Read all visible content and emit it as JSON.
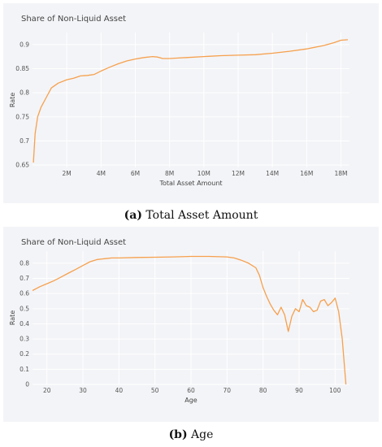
{
  "captions": [
    {
      "letter": "(a)",
      "text": " Total Asset Amount"
    },
    {
      "letter": "(b)",
      "text": " Age"
    }
  ],
  "chart_data": [
    {
      "type": "line",
      "title": "Share of Non-Liquid Asset",
      "xlabel": "Total Asset Amount",
      "ylabel": "Rate",
      "xlim": [
        0,
        18500000
      ],
      "ylim": [
        0.645,
        0.925
      ],
      "x_ticks": [
        2000000,
        4000000,
        6000000,
        8000000,
        10000000,
        12000000,
        14000000,
        16000000,
        18000000
      ],
      "x_tick_labels": [
        "2M",
        "4M",
        "6M",
        "8M",
        "10M",
        "12M",
        "14M",
        "16M",
        "18M"
      ],
      "y_ticks": [
        0.65,
        0.7,
        0.75,
        0.8,
        0.85,
        0.9
      ],
      "y_tick_labels": [
        "0.65",
        "0.7",
        "0.75",
        "0.8",
        "0.85",
        "0.9"
      ],
      "grid": true,
      "color": "#f6a04d",
      "series": [
        {
          "x": [
            50000,
            150000,
            300000,
            500000,
            800000,
            1100000,
            1500000,
            2000000,
            2400000,
            2800000,
            3200000,
            3600000,
            4000000,
            4500000,
            5000000,
            5500000,
            6000000,
            6500000,
            7000000,
            7300000,
            7600000,
            8000000,
            8500000,
            9000000,
            10000000,
            11000000,
            12000000,
            13000000,
            14000000,
            15000000,
            16000000,
            17000000,
            17600000,
            18000000,
            18400000
          ],
          "y": [
            0.655,
            0.715,
            0.75,
            0.77,
            0.79,
            0.81,
            0.82,
            0.827,
            0.83,
            0.835,
            0.836,
            0.838,
            0.845,
            0.853,
            0.86,
            0.866,
            0.87,
            0.873,
            0.875,
            0.874,
            0.871,
            0.871,
            0.872,
            0.873,
            0.875,
            0.877,
            0.878,
            0.879,
            0.882,
            0.886,
            0.891,
            0.898,
            0.904,
            0.909,
            0.91
          ]
        }
      ]
    },
    {
      "type": "line",
      "title": "Share of Non-Liquid Asset",
      "xlabel": "Age",
      "ylabel": "Rate",
      "xlim": [
        16,
        104
      ],
      "ylim": [
        0,
        0.88
      ],
      "x_ticks": [
        20,
        30,
        40,
        50,
        60,
        70,
        80,
        90,
        100
      ],
      "x_tick_labels": [
        "20",
        "30",
        "40",
        "50",
        "60",
        "70",
        "80",
        "90",
        "100"
      ],
      "y_ticks": [
        0,
        0.1,
        0.2,
        0.3,
        0.4,
        0.5,
        0.6,
        0.7,
        0.8
      ],
      "y_tick_labels": [
        "0",
        "0.1",
        "0.2",
        "0.3",
        "0.4",
        "0.5",
        "0.6",
        "0.7",
        "0.8"
      ],
      "grid": true,
      "color": "#f6a04d",
      "series": [
        {
          "x": [
            16,
            18,
            20,
            22,
            24,
            26,
            28,
            30,
            32,
            34,
            36,
            38,
            40,
            45,
            50,
            55,
            60,
            65,
            70,
            72,
            74,
            76,
            78,
            79,
            80,
            81,
            82,
            83,
            84,
            85,
            86,
            87,
            88,
            89,
            90,
            91,
            92,
            93,
            94,
            95,
            96,
            97,
            98,
            99,
            100,
            101,
            102,
            103
          ],
          "y": [
            0.62,
            0.645,
            0.665,
            0.685,
            0.71,
            0.735,
            0.76,
            0.785,
            0.81,
            0.825,
            0.83,
            0.835,
            0.835,
            0.838,
            0.84,
            0.842,
            0.845,
            0.845,
            0.842,
            0.835,
            0.82,
            0.8,
            0.77,
            0.72,
            0.64,
            0.58,
            0.53,
            0.49,
            0.46,
            0.51,
            0.46,
            0.35,
            0.45,
            0.5,
            0.48,
            0.56,
            0.52,
            0.51,
            0.48,
            0.49,
            0.55,
            0.56,
            0.52,
            0.54,
            0.57,
            0.48,
            0.3,
            0.0
          ]
        }
      ]
    }
  ]
}
